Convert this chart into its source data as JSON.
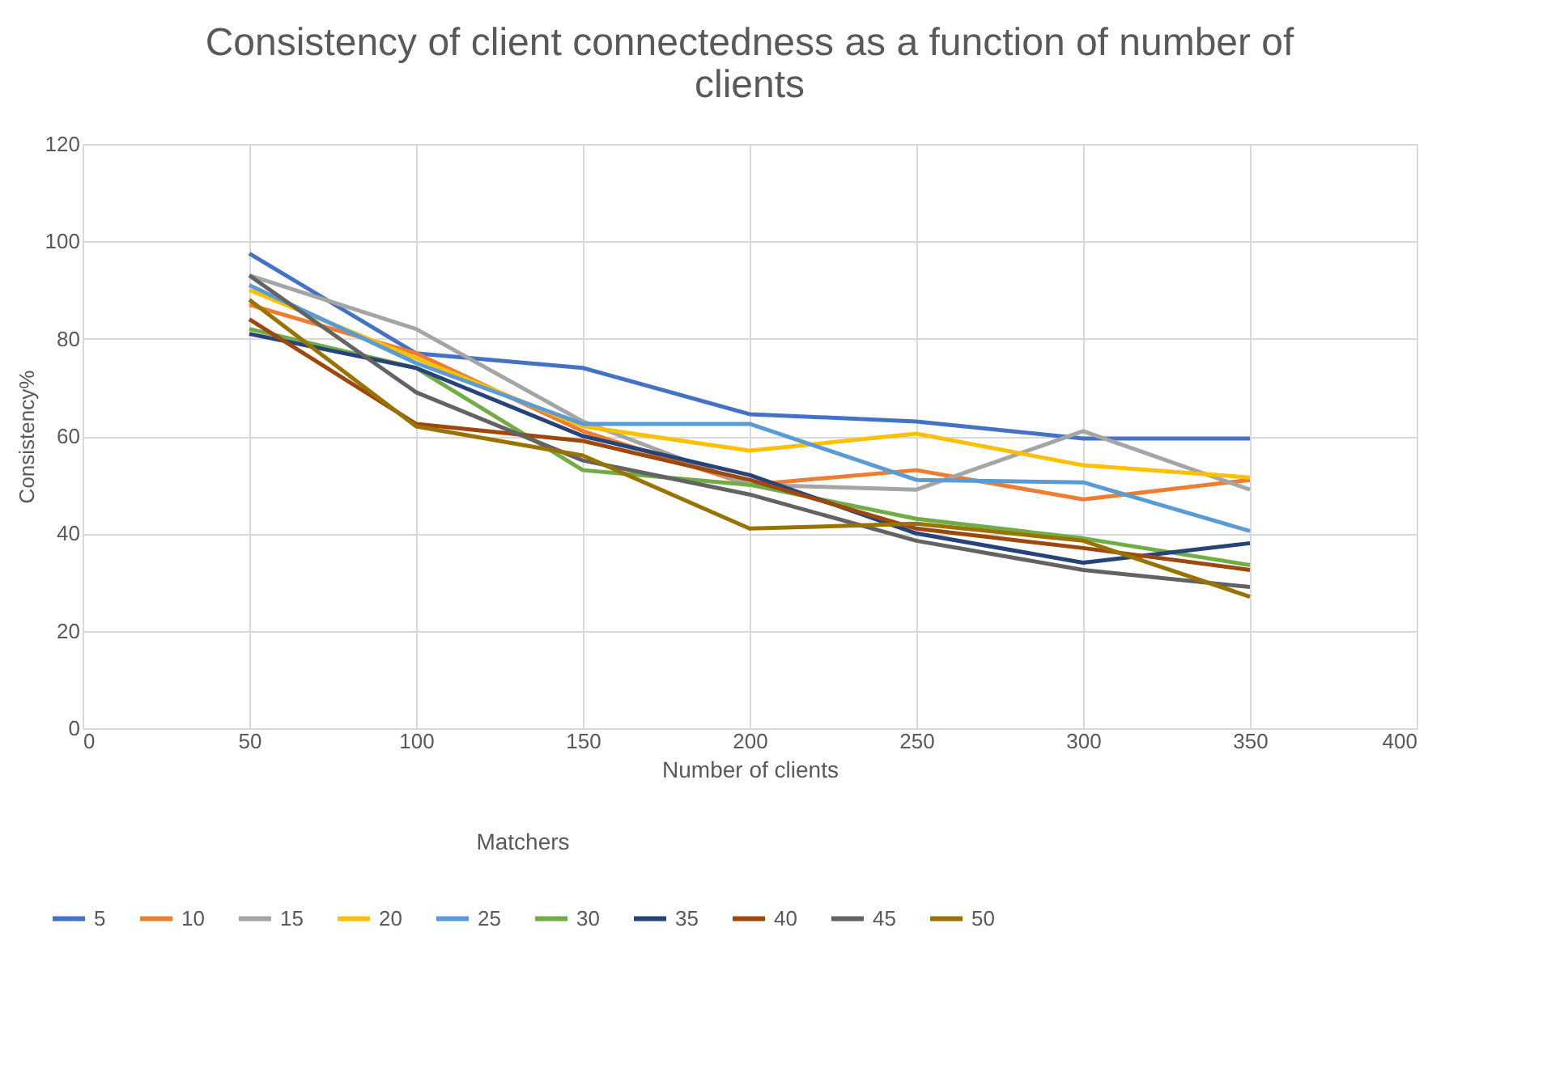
{
  "chart_data": {
    "type": "line",
    "title": "Consistency of client connectedness as a function of number of clients",
    "xlabel": "Number of clients",
    "ylabel": "Consistency%",
    "legend_title": "Matchers",
    "x": [
      50,
      100,
      150,
      200,
      250,
      300,
      350
    ],
    "xlim": [
      0,
      400
    ],
    "xticks": [
      0,
      50,
      100,
      150,
      200,
      250,
      300,
      350,
      400
    ],
    "ylim": [
      0,
      120
    ],
    "yticks": [
      0,
      20,
      40,
      60,
      80,
      100,
      120
    ],
    "grid": true,
    "legend": "bottom",
    "marker": "none",
    "line_style": "solid",
    "series": [
      {
        "name": "5",
        "color": "#4472c4",
        "values": [
          97.5,
          77,
          74,
          64.5,
          63,
          59.5,
          59.5
        ]
      },
      {
        "name": "10",
        "color": "#ed7d31",
        "values": [
          87,
          77,
          61,
          50,
          53,
          47,
          51
        ]
      },
      {
        "name": "15",
        "color": "#a5a5a5",
        "values": [
          93,
          82,
          63,
          50,
          49,
          61,
          49
        ]
      },
      {
        "name": "20",
        "color": "#ffc000",
        "values": [
          90,
          76,
          62,
          57,
          60.5,
          54,
          51.5
        ]
      },
      {
        "name": "25",
        "color": "#5b9bd5",
        "values": [
          91,
          75,
          62.5,
          62.5,
          51,
          50.5,
          40.5
        ]
      },
      {
        "name": "30",
        "color": "#70ad47",
        "values": [
          82,
          74,
          53,
          50,
          43,
          39,
          33.5
        ]
      },
      {
        "name": "35",
        "color": "#264478",
        "values": [
          81,
          74,
          60,
          52,
          40,
          34,
          38
        ]
      },
      {
        "name": "40",
        "color": "#9e480e",
        "values": [
          84,
          62.5,
          59,
          51,
          41,
          37,
          32.5
        ]
      },
      {
        "name": "45",
        "color": "#636363",
        "values": [
          93,
          69,
          55,
          48,
          38.5,
          32.5,
          29
        ]
      },
      {
        "name": "50",
        "color": "#997300",
        "values": [
          88,
          62,
          56,
          41,
          42,
          38.5,
          27
        ]
      }
    ]
  }
}
